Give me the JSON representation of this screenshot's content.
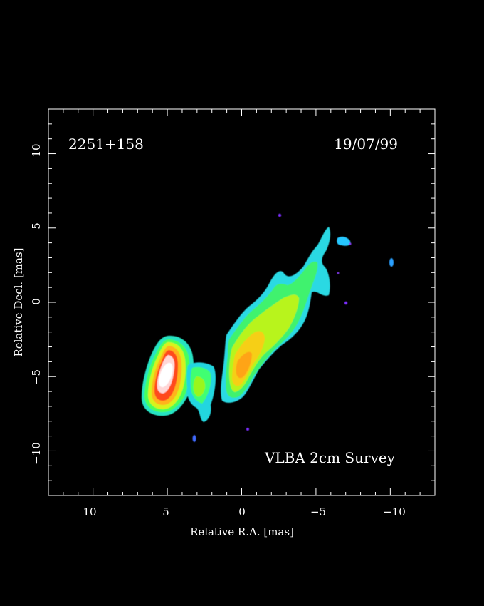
{
  "plot": {
    "source": "2251+158",
    "date": "19/07/99",
    "survey": "VLBA 2cm Survey",
    "xlabel": "Relative R.A. [mas]",
    "ylabel": "Relative Decl. [mas]",
    "x_ticks": [
      "10",
      "5",
      "0",
      "−5",
      "−10"
    ],
    "y_ticks": [
      "10",
      "5",
      "0",
      "−5",
      "−10"
    ],
    "x_range": [
      13,
      -13
    ],
    "y_range": [
      -13,
      13
    ],
    "colors": {
      "background": "#000000",
      "frame": "#ffffff",
      "text": "#ffffff"
    }
  }
}
